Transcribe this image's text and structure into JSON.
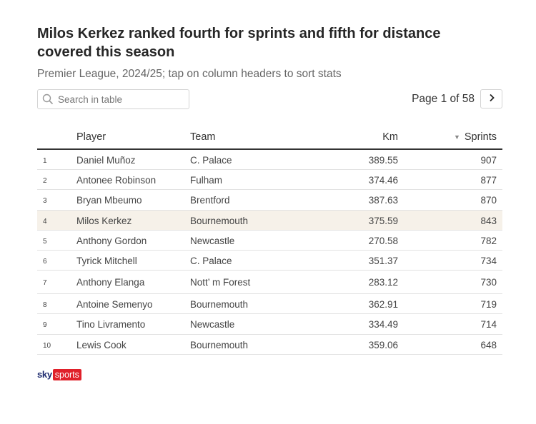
{
  "title": "Milos Kerkez ranked fourth for sprints and fifth for distance covered this season",
  "subtitle": "Premier League, 2024/25; tap on column headers to sort stats",
  "search": {
    "placeholder": "Search in table",
    "icon": "search-icon"
  },
  "pagination": {
    "label": "Page 1 of 58",
    "next_icon": "chevron-right-icon"
  },
  "table": {
    "headers": {
      "player": "Player",
      "team": "Team",
      "km": "Km",
      "sprints": "Sprints",
      "sort_indicator": "▼"
    },
    "rows": [
      {
        "rank": "1",
        "player": "Daniel Muñoz",
        "team": "C. Palace",
        "km": "389.55",
        "sprints": "907"
      },
      {
        "rank": "2",
        "player": "Antonee Robinson",
        "team": "Fulham",
        "km": "374.46",
        "sprints": "877"
      },
      {
        "rank": "3",
        "player": "Bryan Mbeumo",
        "team": "Brentford",
        "km": "387.63",
        "sprints": "870"
      },
      {
        "rank": "4",
        "player": "Milos Kerkez",
        "team": "Bournemouth",
        "km": "375.59",
        "sprints": "843"
      },
      {
        "rank": "5",
        "player": "Anthony Gordon",
        "team": "Newcastle",
        "km": "270.58",
        "sprints": "782"
      },
      {
        "rank": "6",
        "player": "Tyrick Mitchell",
        "team": "C. Palace",
        "km": "351.37",
        "sprints": "734"
      },
      {
        "rank": "7",
        "player": "Anthony Elanga",
        "team": "Nott’ m Forest",
        "km": "283.12",
        "sprints": "730"
      },
      {
        "rank": "8",
        "player": "Antoine Semenyo",
        "team": "Bournemouth",
        "km": "362.91",
        "sprints": "719"
      },
      {
        "rank": "9",
        "player": "Tino Livramento",
        "team": "Newcastle",
        "km": "334.49",
        "sprints": "714"
      },
      {
        "rank": "10",
        "player": "Lewis Cook",
        "team": "Bournemouth",
        "km": "359.06",
        "sprints": "648"
      }
    ]
  },
  "branding": {
    "sky": "sky",
    "sports": "sports",
    "accent": "#e0202a",
    "navy": "#1d2a6e"
  },
  "colors": {
    "highlight_row": "#f6f1e9"
  }
}
